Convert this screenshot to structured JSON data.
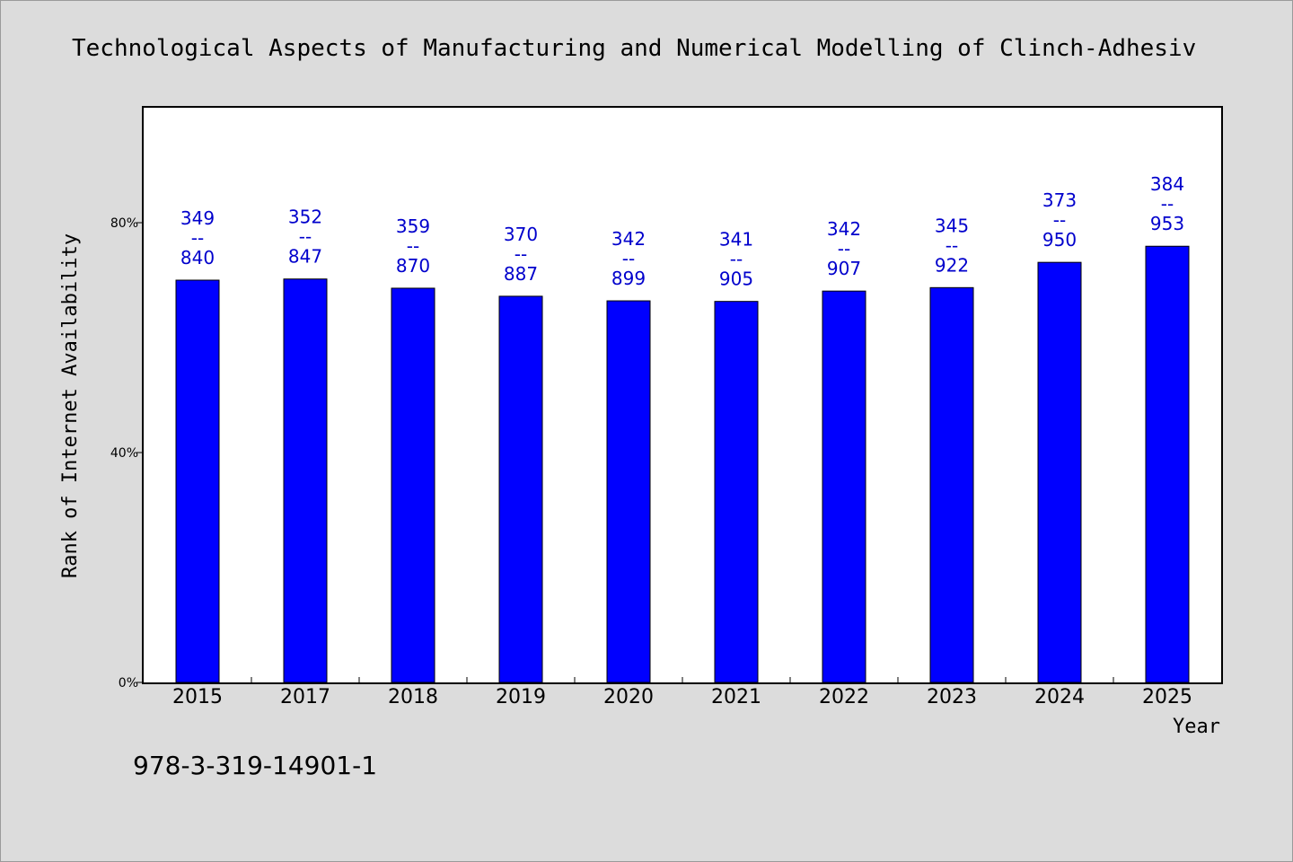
{
  "chart_data": {
    "type": "bar",
    "title": "Technological Aspects of Manufacturing and Numerical Modelling of Clinch-Adhesiv",
    "ylabel": "Rank of Internet Availability",
    "xlabel": "Year",
    "categories": [
      "2015",
      "2017",
      "2018",
      "2019",
      "2020",
      "2021",
      "2022",
      "2023",
      "2024",
      "2025"
    ],
    "values": [
      70,
      70.2,
      68.6,
      67.2,
      66.4,
      66.3,
      68.1,
      68.7,
      73.1,
      75.9
    ],
    "data_labels": [
      {
        "top": "349",
        "sep": "--",
        "bottom": "840"
      },
      {
        "top": "352",
        "sep": "--",
        "bottom": "847"
      },
      {
        "top": "359",
        "sep": "--",
        "bottom": "870"
      },
      {
        "top": "370",
        "sep": "--",
        "bottom": "887"
      },
      {
        "top": "342",
        "sep": "--",
        "bottom": "899"
      },
      {
        "top": "341",
        "sep": "--",
        "bottom": "905"
      },
      {
        "top": "342",
        "sep": "--",
        "bottom": "907"
      },
      {
        "top": "345",
        "sep": "--",
        "bottom": "922"
      },
      {
        "top": "373",
        "sep": "--",
        "bottom": "950"
      },
      {
        "top": "384",
        "sep": "--",
        "bottom": "953"
      }
    ],
    "yticks": [
      {
        "value": 0,
        "label": "0%"
      },
      {
        "value": 40,
        "label": "40%"
      },
      {
        "value": 80,
        "label": "80%"
      }
    ],
    "ylim": [
      0,
      100
    ],
    "grid": false,
    "bar_color": "#0000ff",
    "label_color": "#0000cc"
  },
  "footnote": "978-3-319-14901-1"
}
